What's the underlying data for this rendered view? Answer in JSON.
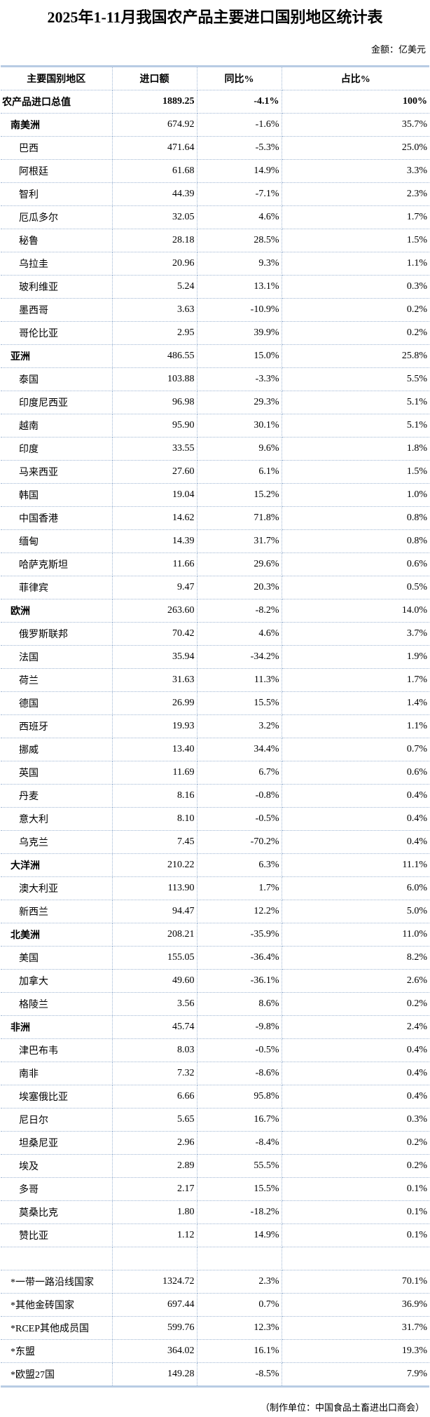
{
  "title": "2025年1-11月我国农产品主要进口国别地区统计表",
  "unit": "金额：亿美元",
  "columns": [
    "主要国别地区",
    "进口额",
    "同比%",
    "占比%"
  ],
  "rows": [
    {
      "type": "total",
      "name": "农产品进口总值",
      "value": "1889.25",
      "yoy": "-4.1%",
      "share": "100%"
    },
    {
      "type": "region",
      "name": "南美洲",
      "value": "674.92",
      "yoy": "-1.6%",
      "share": "35.7%"
    },
    {
      "type": "country",
      "name": "巴西",
      "value": "471.64",
      "yoy": "-5.3%",
      "share": "25.0%"
    },
    {
      "type": "country",
      "name": "阿根廷",
      "value": "61.68",
      "yoy": "14.9%",
      "share": "3.3%"
    },
    {
      "type": "country",
      "name": "智利",
      "value": "44.39",
      "yoy": "-7.1%",
      "share": "2.3%"
    },
    {
      "type": "country",
      "name": "厄瓜多尔",
      "value": "32.05",
      "yoy": "4.6%",
      "share": "1.7%"
    },
    {
      "type": "country",
      "name": "秘鲁",
      "value": "28.18",
      "yoy": "28.5%",
      "share": "1.5%"
    },
    {
      "type": "country",
      "name": "乌拉圭",
      "value": "20.96",
      "yoy": "9.3%",
      "share": "1.1%"
    },
    {
      "type": "country",
      "name": "玻利维亚",
      "value": "5.24",
      "yoy": "13.1%",
      "share": "0.3%"
    },
    {
      "type": "country",
      "name": "墨西哥",
      "value": "3.63",
      "yoy": "-10.9%",
      "share": "0.2%"
    },
    {
      "type": "country",
      "name": "哥伦比亚",
      "value": "2.95",
      "yoy": "39.9%",
      "share": "0.2%"
    },
    {
      "type": "region",
      "name": "亚洲",
      "value": "486.55",
      "yoy": "15.0%",
      "share": "25.8%"
    },
    {
      "type": "country",
      "name": "泰国",
      "value": "103.88",
      "yoy": "-3.3%",
      "share": "5.5%"
    },
    {
      "type": "country",
      "name": "印度尼西亚",
      "value": "96.98",
      "yoy": "29.3%",
      "share": "5.1%"
    },
    {
      "type": "country",
      "name": "越南",
      "value": "95.90",
      "yoy": "30.1%",
      "share": "5.1%"
    },
    {
      "type": "country",
      "name": "印度",
      "value": "33.55",
      "yoy": "9.6%",
      "share": "1.8%"
    },
    {
      "type": "country",
      "name": "马来西亚",
      "value": "27.60",
      "yoy": "6.1%",
      "share": "1.5%"
    },
    {
      "type": "country",
      "name": "韩国",
      "value": "19.04",
      "yoy": "15.2%",
      "share": "1.0%"
    },
    {
      "type": "country",
      "name": "中国香港",
      "value": "14.62",
      "yoy": "71.8%",
      "share": "0.8%"
    },
    {
      "type": "country",
      "name": "缅甸",
      "value": "14.39",
      "yoy": "31.7%",
      "share": "0.8%"
    },
    {
      "type": "country",
      "name": "哈萨克斯坦",
      "value": "11.66",
      "yoy": "29.6%",
      "share": "0.6%"
    },
    {
      "type": "country",
      "name": "菲律宾",
      "value": "9.47",
      "yoy": "20.3%",
      "share": "0.5%"
    },
    {
      "type": "region",
      "name": "欧洲",
      "value": "263.60",
      "yoy": "-8.2%",
      "share": "14.0%"
    },
    {
      "type": "country",
      "name": "俄罗斯联邦",
      "value": "70.42",
      "yoy": "4.6%",
      "share": "3.7%"
    },
    {
      "type": "country",
      "name": "法国",
      "value": "35.94",
      "yoy": "-34.2%",
      "share": "1.9%"
    },
    {
      "type": "country",
      "name": "荷兰",
      "value": "31.63",
      "yoy": "11.3%",
      "share": "1.7%"
    },
    {
      "type": "country",
      "name": "德国",
      "value": "26.99",
      "yoy": "15.5%",
      "share": "1.4%"
    },
    {
      "type": "country",
      "name": "西班牙",
      "value": "19.93",
      "yoy": "3.2%",
      "share": "1.1%"
    },
    {
      "type": "country",
      "name": "挪威",
      "value": "13.40",
      "yoy": "34.4%",
      "share": "0.7%"
    },
    {
      "type": "country",
      "name": "英国",
      "value": "11.69",
      "yoy": "6.7%",
      "share": "0.6%"
    },
    {
      "type": "country",
      "name": "丹麦",
      "value": "8.16",
      "yoy": "-0.8%",
      "share": "0.4%"
    },
    {
      "type": "country",
      "name": "意大利",
      "value": "8.10",
      "yoy": "-0.5%",
      "share": "0.4%"
    },
    {
      "type": "country",
      "name": "乌克兰",
      "value": "7.45",
      "yoy": "-70.2%",
      "share": "0.4%"
    },
    {
      "type": "region",
      "name": "大洋洲",
      "value": "210.22",
      "yoy": "6.3%",
      "share": "11.1%"
    },
    {
      "type": "country",
      "name": "澳大利亚",
      "value": "113.90",
      "yoy": "1.7%",
      "share": "6.0%"
    },
    {
      "type": "country",
      "name": "新西兰",
      "value": "94.47",
      "yoy": "12.2%",
      "share": "5.0%"
    },
    {
      "type": "region",
      "name": "北美洲",
      "value": "208.21",
      "yoy": "-35.9%",
      "share": "11.0%"
    },
    {
      "type": "country",
      "name": "美国",
      "value": "155.05",
      "yoy": "-36.4%",
      "share": "8.2%"
    },
    {
      "type": "country",
      "name": "加拿大",
      "value": "49.60",
      "yoy": "-36.1%",
      "share": "2.6%"
    },
    {
      "type": "country",
      "name": "格陵兰",
      "value": "3.56",
      "yoy": "8.6%",
      "share": "0.2%"
    },
    {
      "type": "region",
      "name": "非洲",
      "value": "45.74",
      "yoy": "-9.8%",
      "share": "2.4%"
    },
    {
      "type": "country",
      "name": "津巴布韦",
      "value": "8.03",
      "yoy": "-0.5%",
      "share": "0.4%"
    },
    {
      "type": "country",
      "name": "南非",
      "value": "7.32",
      "yoy": "-8.6%",
      "share": "0.4%"
    },
    {
      "type": "country",
      "name": "埃塞俄比亚",
      "value": "6.66",
      "yoy": "95.8%",
      "share": "0.4%"
    },
    {
      "type": "country",
      "name": "尼日尔",
      "value": "5.65",
      "yoy": "16.7%",
      "share": "0.3%"
    },
    {
      "type": "country",
      "name": "坦桑尼亚",
      "value": "2.96",
      "yoy": "-8.4%",
      "share": "0.2%"
    },
    {
      "type": "country",
      "name": "埃及",
      "value": "2.89",
      "yoy": "55.5%",
      "share": "0.2%"
    },
    {
      "type": "country",
      "name": "多哥",
      "value": "2.17",
      "yoy": "15.5%",
      "share": "0.1%"
    },
    {
      "type": "country",
      "name": "莫桑比克",
      "value": "1.80",
      "yoy": "-18.2%",
      "share": "0.1%"
    },
    {
      "type": "country",
      "name": "赞比亚",
      "value": "1.12",
      "yoy": "14.9%",
      "share": "0.1%"
    },
    {
      "type": "blank",
      "name": "",
      "value": "",
      "yoy": "",
      "share": ""
    },
    {
      "type": "group",
      "name": "*一带一路沿线国家",
      "value": "1324.72",
      "yoy": "2.3%",
      "share": "70.1%"
    },
    {
      "type": "group",
      "name": "*其他金砖国家",
      "value": "697.44",
      "yoy": "0.7%",
      "share": "36.9%"
    },
    {
      "type": "group",
      "name": "*RCEP其他成员国",
      "value": "599.76",
      "yoy": "12.3%",
      "share": "31.7%"
    },
    {
      "type": "group",
      "name": "*东盟",
      "value": "364.02",
      "yoy": "16.1%",
      "share": "19.3%"
    },
    {
      "type": "group",
      "name": "*欧盟27国",
      "value": "149.28",
      "yoy": "-8.5%",
      "share": "7.9%"
    }
  ],
  "footer": "（制作单位：中国食品土畜进出口商会）",
  "colors": {
    "border": "#b8cce4",
    "gridline": "#9fb6d3"
  }
}
